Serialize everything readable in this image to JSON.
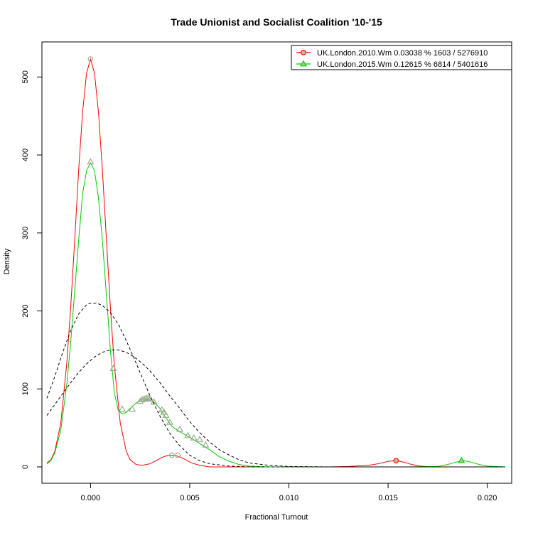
{
  "chart_data": {
    "type": "line",
    "title": "Trade Unionist and Socialist Coalition '10-'15",
    "xlabel": "Fractional Turnout",
    "ylabel": "Density",
    "xlim": [
      -0.00245,
      0.02123
    ],
    "ylim": [
      -21.0,
      545.0
    ],
    "x_ticks": [
      0.0,
      0.005,
      0.01,
      0.015,
      0.02
    ],
    "x_tick_labels": [
      "0.000",
      "0.005",
      "0.010",
      "0.015",
      "0.020"
    ],
    "y_ticks": [
      0,
      100,
      200,
      300,
      400,
      500
    ],
    "y_tick_labels": [
      "0",
      "100",
      "200",
      "300",
      "400",
      "500"
    ],
    "grid": false,
    "legend_position": "top-right",
    "colors": {
      "red": "#ff0000",
      "green": "#00cc00",
      "marker_fill": "#a8c88a",
      "reference": "#000000"
    },
    "series": [
      {
        "name": "UK.London.2010.Wm 0.03038 % 1603 / 5276910",
        "color": "#ff0000",
        "marker": "circle",
        "x": [
          -0.0022,
          -0.002,
          -0.0018,
          -0.0015,
          -0.0012,
          -0.001,
          -0.0008,
          -0.0006,
          -0.0004,
          -0.0002,
          0.0,
          0.0002,
          0.0004,
          0.0006,
          0.0008,
          0.001,
          0.0012,
          0.0015,
          0.0018,
          0.002,
          0.0023,
          0.0026,
          0.003,
          0.0033,
          0.0036,
          0.0039,
          0.0042,
          0.0045,
          0.0048,
          0.0051,
          0.0055,
          0.006,
          0.007,
          0.008,
          0.01,
          0.012,
          0.013,
          0.014,
          0.0145,
          0.015,
          0.0154,
          0.0158,
          0.0162,
          0.0166,
          0.0172,
          0.018,
          0.019,
          0.02,
          0.0209
        ],
        "y": [
          5,
          9,
          20,
          56,
          132,
          205,
          290,
          380,
          455,
          505,
          523,
          505,
          455,
          380,
          292,
          205,
          130,
          56,
          20,
          9,
          3,
          2,
          4,
          8,
          12,
          15,
          15,
          13,
          9,
          5,
          2,
          0,
          0,
          0,
          0,
          0,
          0.5,
          2,
          4,
          7,
          8,
          6,
          3,
          1,
          0,
          0,
          0,
          0,
          0
        ],
        "markers": [
          {
            "x": 0.0,
            "y": 523
          },
          {
            "x": 0.0041,
            "y": 15
          },
          {
            "x": 0.0044,
            "y": 15
          },
          {
            "x": 0.0154,
            "y": 8
          }
        ]
      },
      {
        "name": "UK.London.2015.Wm 0.12615 % 6814 / 5401616",
        "color": "#00cc00",
        "marker": "triangle",
        "x": [
          -0.0022,
          -0.002,
          -0.0018,
          -0.0015,
          -0.0012,
          -0.001,
          -0.0008,
          -0.0006,
          -0.0004,
          -0.0002,
          0.0,
          0.0002,
          0.0004,
          0.0006,
          0.0008,
          0.001,
          0.0012,
          0.0014,
          0.0016,
          0.0018,
          0.002,
          0.0023,
          0.0026,
          0.0029,
          0.0032,
          0.0035,
          0.0038,
          0.0041,
          0.0045,
          0.005,
          0.0055,
          0.006,
          0.0065,
          0.007,
          0.0075,
          0.008,
          0.009,
          0.01,
          0.012,
          0.014,
          0.016,
          0.0175,
          0.018,
          0.0184,
          0.0188,
          0.0192,
          0.0196,
          0.02,
          0.0209
        ],
        "y": [
          4,
          8,
          18,
          47,
          105,
          160,
          225,
          290,
          350,
          380,
          390,
          380,
          345,
          290,
          220,
          150,
          95,
          72,
          68,
          70,
          75,
          82,
          87,
          87,
          83,
          75,
          63,
          52,
          45,
          38,
          30,
          22,
          13,
          7,
          3,
          1,
          0,
          0,
          0,
          0,
          0,
          0.5,
          3,
          6,
          8,
          6,
          3,
          1,
          0
        ],
        "markers": [
          {
            "x": 0.0,
            "y": 391
          },
          {
            "x": 0.00115,
            "y": 126
          },
          {
            "x": 0.0016,
            "y": 74
          },
          {
            "x": 0.0021,
            "y": 74
          },
          {
            "x": 0.0025,
            "y": 84
          },
          {
            "x": 0.0026,
            "y": 86
          },
          {
            "x": 0.0027,
            "y": 87
          },
          {
            "x": 0.0028,
            "y": 88
          },
          {
            "x": 0.0029,
            "y": 88
          },
          {
            "x": 0.003,
            "y": 87
          },
          {
            "x": 0.0032,
            "y": 83
          },
          {
            "x": 0.0036,
            "y": 73
          },
          {
            "x": 0.0037,
            "y": 70
          },
          {
            "x": 0.0038,
            "y": 66
          },
          {
            "x": 0.004,
            "y": 57
          },
          {
            "x": 0.0045,
            "y": 48
          },
          {
            "x": 0.0049,
            "y": 40
          },
          {
            "x": 0.0052,
            "y": 37
          },
          {
            "x": 0.0055,
            "y": 35
          },
          {
            "x": 0.0058,
            "y": 28
          },
          {
            "x": 0.0187,
            "y": 8
          }
        ]
      },
      {
        "color": "#000000",
        "dashed": true,
        "x": [
          -0.0022,
          -0.0018,
          -0.0014,
          -0.001,
          -0.0006,
          -0.0002,
          0.0,
          0.0003,
          0.0006,
          0.001,
          0.0014,
          0.0018,
          0.0022,
          0.0026,
          0.003,
          0.0035,
          0.004,
          0.0045,
          0.005,
          0.0055,
          0.006,
          0.007,
          0.008,
          0.009,
          0.01,
          0.012,
          0.015,
          0.018,
          0.0209
        ],
        "y": [
          88,
          116,
          147,
          175,
          196,
          208,
          210,
          210,
          207,
          198,
          183,
          162,
          139,
          115,
          91,
          65,
          43,
          27,
          15,
          8,
          4,
          1,
          0,
          0,
          0,
          0,
          0,
          0,
          0
        ]
      },
      {
        "color": "#000000",
        "dashed": true,
        "x": [
          -0.0022,
          -0.0018,
          -0.0014,
          -0.001,
          -0.0006,
          -0.0002,
          0.0002,
          0.0006,
          0.001,
          0.0014,
          0.0018,
          0.0022,
          0.0026,
          0.003,
          0.0035,
          0.004,
          0.0045,
          0.005,
          0.0055,
          0.006,
          0.0065,
          0.007,
          0.0075,
          0.008,
          0.009,
          0.01,
          0.012,
          0.015,
          0.018,
          0.0209
        ],
        "y": [
          66,
          80,
          94,
          108,
          121,
          132,
          141,
          147,
          150,
          150,
          147,
          141,
          133,
          123,
          108,
          91,
          75,
          58,
          44,
          32,
          22,
          15,
          9,
          5,
          2,
          0.5,
          0,
          0,
          0,
          0
        ]
      }
    ]
  }
}
